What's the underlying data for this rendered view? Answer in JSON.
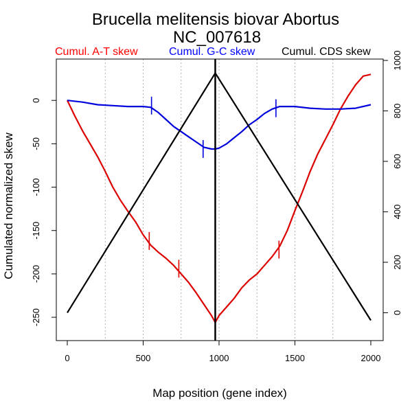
{
  "chart_data": {
    "type": "line",
    "title": "Brucella melitensis biovar Abortus",
    "subtitle": "NC_007618",
    "xlabel": "Map position (gene index)",
    "ylabel": "Cumulated normalized skew",
    "xlim": [
      0,
      2000
    ],
    "ylim_left": [
      -265,
      35
    ],
    "ylim_right": [
      -75,
      1000
    ],
    "x_ticks": [
      0,
      500,
      1000,
      1500,
      2000
    ],
    "y_ticks_left": [
      0,
      -50,
      -100,
      -150,
      -200,
      -250
    ],
    "y_ticks_right": [
      0,
      200,
      400,
      600,
      800,
      1000
    ],
    "grid_x": [
      250,
      500,
      750,
      1000,
      1250,
      1500,
      1750
    ],
    "divider_x": 975,
    "legend": [
      {
        "label": "Cumul. A-T skew",
        "color": "#ff0000"
      },
      {
        "label": "Cumul. G-C skew",
        "color": "#0000ff"
      },
      {
        "label": "Cumul. CDS skew",
        "color": "#000000"
      }
    ],
    "series": [
      {
        "name": "Cumul. A-T skew",
        "color": "#dd0000",
        "axis": "left",
        "x": [
          0,
          50,
          100,
          150,
          200,
          250,
          300,
          350,
          400,
          450,
          500,
          550,
          600,
          650,
          700,
          750,
          800,
          850,
          900,
          950,
          975,
          1000,
          1050,
          1100,
          1150,
          1200,
          1250,
          1300,
          1350,
          1400,
          1450,
          1500,
          1550,
          1600,
          1650,
          1700,
          1750,
          1800,
          1850,
          1900,
          1950,
          2000
        ],
        "values": [
          0,
          -18,
          -35,
          -50,
          -65,
          -82,
          -100,
          -115,
          -128,
          -140,
          -155,
          -167,
          -175,
          -182,
          -190,
          -200,
          -210,
          -222,
          -235,
          -248,
          -256,
          -248,
          -238,
          -228,
          -216,
          -207,
          -200,
          -190,
          -180,
          -168,
          -150,
          -127,
          -105,
          -82,
          -62,
          -45,
          -28,
          -10,
          5,
          18,
          28,
          30
        ]
      },
      {
        "name": "Cumul. G-C skew",
        "color": "#0000dd",
        "axis": "left",
        "x": [
          0,
          100,
          200,
          300,
          400,
          500,
          550,
          600,
          650,
          700,
          750,
          800,
          850,
          900,
          950,
          975,
          1000,
          1050,
          1100,
          1150,
          1200,
          1250,
          1300,
          1350,
          1400,
          1450,
          1500,
          1600,
          1700,
          1800,
          1900,
          2000
        ],
        "values": [
          0,
          -2,
          -5,
          -6,
          -7,
          -7,
          -8,
          -14,
          -22,
          -30,
          -36,
          -42,
          -48,
          -54,
          -56,
          -56,
          -55,
          -50,
          -43,
          -36,
          -28,
          -22,
          -15,
          -10,
          -7,
          -7,
          -7,
          -9,
          -10,
          -10,
          -9,
          -5
        ]
      },
      {
        "name": "Cumul. CDS skew",
        "color": "#000000",
        "axis": "right",
        "x": [
          0,
          975,
          2000
        ],
        "values": [
          0,
          950,
          -30
        ]
      }
    ],
    "markers": [
      {
        "series": "Cumul. A-T skew",
        "x": [
          540,
          735,
          1395
        ],
        "y": [
          -162,
          -194,
          -172
        ]
      },
      {
        "series": "Cumul. G-C skew",
        "x": [
          555,
          895,
          1375
        ],
        "y": [
          -6,
          -56,
          -9
        ]
      }
    ]
  }
}
